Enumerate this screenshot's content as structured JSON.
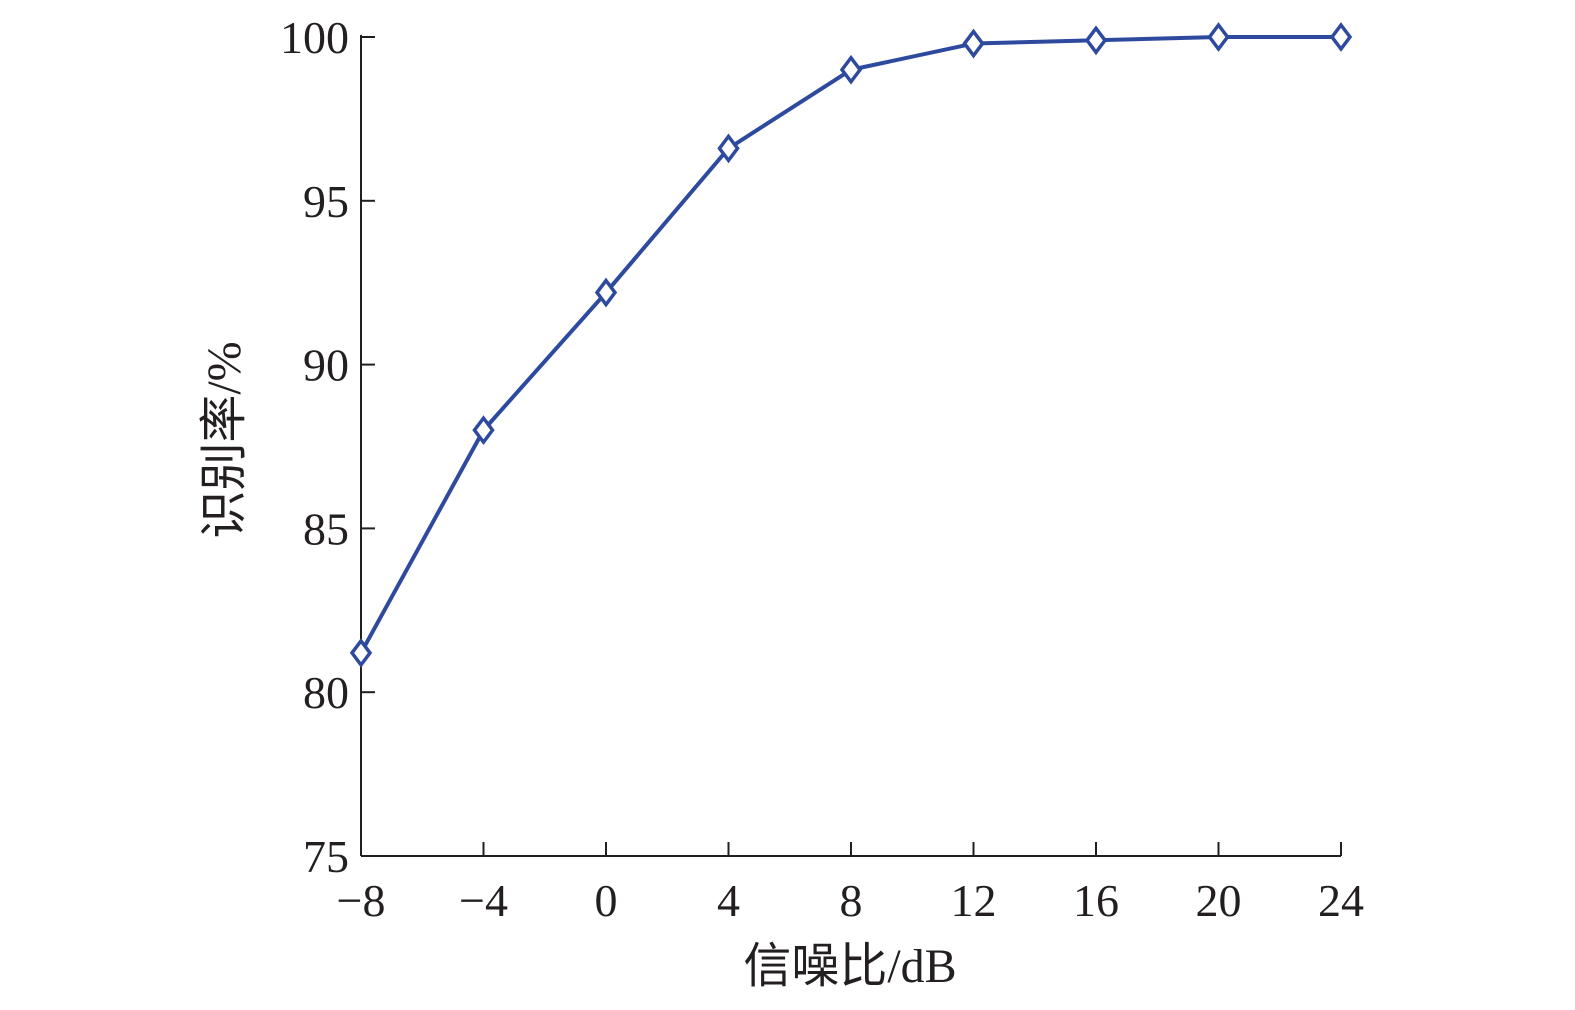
{
  "chart_data": {
    "type": "line",
    "title": "",
    "xlabel": "信噪比/dB",
    "ylabel": "识别率/%",
    "x": [
      -8,
      -4,
      0,
      4,
      8,
      12,
      16,
      20,
      24
    ],
    "x_tick_labels": [
      "−8",
      "−4",
      "0",
      "4",
      "8",
      "12",
      "16",
      "20",
      "24"
    ],
    "y_tick_labels": [
      "75",
      "80",
      "85",
      "90",
      "95",
      "100"
    ],
    "y_ticks": [
      75,
      80,
      85,
      90,
      95,
      100
    ],
    "xlim": [
      -8,
      24
    ],
    "ylim": [
      75,
      100
    ],
    "grid": false,
    "series": [
      {
        "values": [
          81.2,
          88.0,
          92.2,
          96.6,
          99.0,
          99.8,
          99.9,
          100.0,
          100.0
        ],
        "color": "#2e4a9e",
        "marker": "diamond"
      }
    ]
  }
}
